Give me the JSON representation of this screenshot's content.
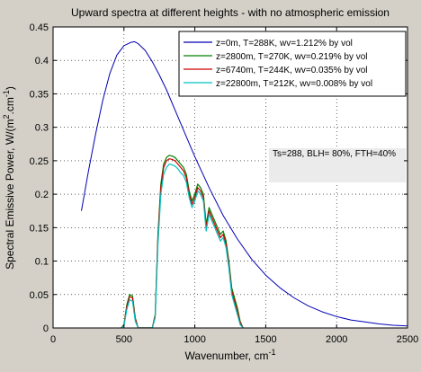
{
  "chart_data": {
    "type": "line",
    "title": "Upward spectra at different heights - with no atmospheric emission",
    "xlabel": "Wavenumber, cm",
    "xlabel_sup": "-1",
    "ylabel": "Spectral Emissive Power, W/(m",
    "ylabel_sup1": "2",
    "ylabel_mid": ".cm",
    "ylabel_sup2": "-1",
    "ylabel_end": ")",
    "xlim": [
      0,
      2500
    ],
    "ylim": [
      0,
      0.45
    ],
    "xticks": [
      "0",
      "500",
      "1000",
      "1500",
      "2000",
      "2500"
    ],
    "yticks": [
      "0",
      "0.05",
      "0.1",
      "0.15",
      "0.2",
      "0.25",
      "0.3",
      "0.35",
      "0.4",
      "0.45"
    ],
    "xtick_values": [
      0,
      500,
      1000,
      1500,
      2000,
      2500
    ],
    "ytick_values": [
      0,
      0.05,
      0.1,
      0.15,
      0.2,
      0.25,
      0.3,
      0.35,
      0.4,
      0.45
    ],
    "grid": true,
    "legend_position": "top-right",
    "annotation": "Ts=288, BLH= 80%, FTH=40%",
    "series": [
      {
        "name": "z=0m, T=288K, wv=1.212% by vol",
        "color": "#0000b4",
        "x": [
          200,
          250,
          300,
          350,
          400,
          450,
          500,
          550,
          575,
          600,
          650,
          700,
          750,
          800,
          900,
          1000,
          1100,
          1200,
          1300,
          1400,
          1500,
          1600,
          1700,
          1800,
          1900,
          2000,
          2100,
          2200,
          2300,
          2400,
          2500
        ],
        "y": [
          0.175,
          0.235,
          0.29,
          0.34,
          0.38,
          0.408,
          0.422,
          0.427,
          0.428,
          0.425,
          0.415,
          0.398,
          0.378,
          0.356,
          0.306,
          0.256,
          0.21,
          0.168,
          0.133,
          0.103,
          0.079,
          0.06,
          0.045,
          0.033,
          0.024,
          0.017,
          0.012,
          0.009,
          0.006,
          0.004,
          0.003
        ]
      },
      {
        "name": "z=2800m, T=270K, wv=0.219% by vol",
        "color": "#008000",
        "x": [
          480,
          500,
          520,
          540,
          560,
          580,
          600,
          620,
          640,
          660,
          680,
          700,
          720,
          740,
          760,
          780,
          800,
          820,
          840,
          860,
          880,
          900,
          920,
          940,
          960,
          980,
          1000,
          1020,
          1040,
          1060,
          1080,
          1100,
          1120,
          1140,
          1160,
          1180,
          1200,
          1220,
          1240,
          1260,
          1280,
          1300,
          1320,
          1340
        ],
        "y": [
          0.0,
          0.005,
          0.035,
          0.05,
          0.048,
          0.015,
          0.0,
          0.0,
          0.0,
          0.0,
          0.0,
          0.0,
          0.02,
          0.14,
          0.215,
          0.245,
          0.255,
          0.258,
          0.257,
          0.255,
          0.25,
          0.245,
          0.24,
          0.23,
          0.205,
          0.19,
          0.2,
          0.215,
          0.21,
          0.2,
          0.155,
          0.18,
          0.17,
          0.16,
          0.15,
          0.14,
          0.145,
          0.13,
          0.1,
          0.06,
          0.045,
          0.03,
          0.01,
          0.0
        ]
      },
      {
        "name": "z=6740m, T=244K, wv=0.035% by vol",
        "color": "#cc0000",
        "x": [
          480,
          500,
          520,
          540,
          560,
          580,
          600,
          620,
          640,
          660,
          680,
          700,
          720,
          740,
          760,
          780,
          800,
          820,
          840,
          860,
          880,
          900,
          920,
          940,
          960,
          980,
          1000,
          1020,
          1040,
          1060,
          1080,
          1100,
          1120,
          1140,
          1160,
          1180,
          1200,
          1220,
          1240,
          1260,
          1280,
          1300,
          1320,
          1340
        ],
        "y": [
          0.0,
          0.004,
          0.032,
          0.047,
          0.045,
          0.013,
          0.0,
          0.0,
          0.0,
          0.0,
          0.0,
          0.0,
          0.018,
          0.135,
          0.21,
          0.24,
          0.25,
          0.253,
          0.252,
          0.25,
          0.245,
          0.24,
          0.235,
          0.225,
          0.2,
          0.185,
          0.195,
          0.21,
          0.205,
          0.195,
          0.15,
          0.175,
          0.165,
          0.155,
          0.145,
          0.135,
          0.14,
          0.125,
          0.095,
          0.055,
          0.04,
          0.025,
          0.008,
          0.0
        ]
      },
      {
        "name": "z=22800m, T=212K, wv=0.008% by vol",
        "color": "#00c0c0",
        "x": [
          480,
          500,
          520,
          540,
          560,
          580,
          600,
          620,
          640,
          660,
          680,
          700,
          720,
          740,
          760,
          780,
          800,
          820,
          840,
          860,
          880,
          900,
          920,
          940,
          960,
          980,
          1000,
          1020,
          1040,
          1060,
          1080,
          1100,
          1120,
          1140,
          1160,
          1180,
          1200,
          1220,
          1240,
          1260,
          1280,
          1300,
          1320,
          1340
        ],
        "y": [
          0.0,
          0.003,
          0.028,
          0.042,
          0.04,
          0.01,
          0.0,
          0.0,
          0.0,
          0.0,
          0.0,
          0.0,
          0.015,
          0.125,
          0.2,
          0.23,
          0.24,
          0.245,
          0.244,
          0.242,
          0.238,
          0.232,
          0.228,
          0.218,
          0.195,
          0.18,
          0.19,
          0.205,
          0.2,
          0.19,
          0.145,
          0.17,
          0.16,
          0.15,
          0.14,
          0.13,
          0.135,
          0.12,
          0.09,
          0.05,
          0.035,
          0.02,
          0.005,
          0.0
        ]
      }
    ]
  }
}
